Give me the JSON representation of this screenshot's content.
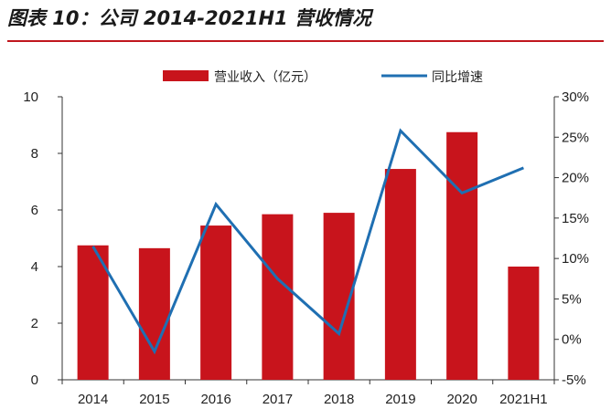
{
  "title": "图表 10：公司 2014-2021H1 营收情况",
  "colors": {
    "bar": "#c8141c",
    "line": "#1f6fb2",
    "rule": "#c0161d"
  },
  "chart_data": {
    "type": "bar+line",
    "categories": [
      "2014",
      "2015",
      "2016",
      "2017",
      "2018",
      "2019",
      "2020",
      "2021H1"
    ],
    "series": [
      {
        "name": "营业收入（亿元）",
        "type": "bar",
        "axis": "left",
        "values": [
          4.75,
          4.65,
          5.45,
          5.85,
          5.9,
          7.45,
          8.75,
          4.0
        ]
      },
      {
        "name": "同比增速",
        "type": "line",
        "axis": "right",
        "values": [
          11.5,
          -1.5,
          16.7,
          7.5,
          0.7,
          25.8,
          18.1,
          21.2
        ]
      }
    ],
    "y_left": {
      "min": 0,
      "max": 10,
      "ticks": [
        "0",
        "2",
        "4",
        "6",
        "8",
        "10"
      ]
    },
    "y_right": {
      "min": -5,
      "max": 30,
      "ticks": [
        "-5%",
        "0%",
        "5%",
        "10%",
        "15%",
        "20%",
        "25%",
        "30%"
      ]
    },
    "legend_position": "top-center",
    "grid": false
  }
}
